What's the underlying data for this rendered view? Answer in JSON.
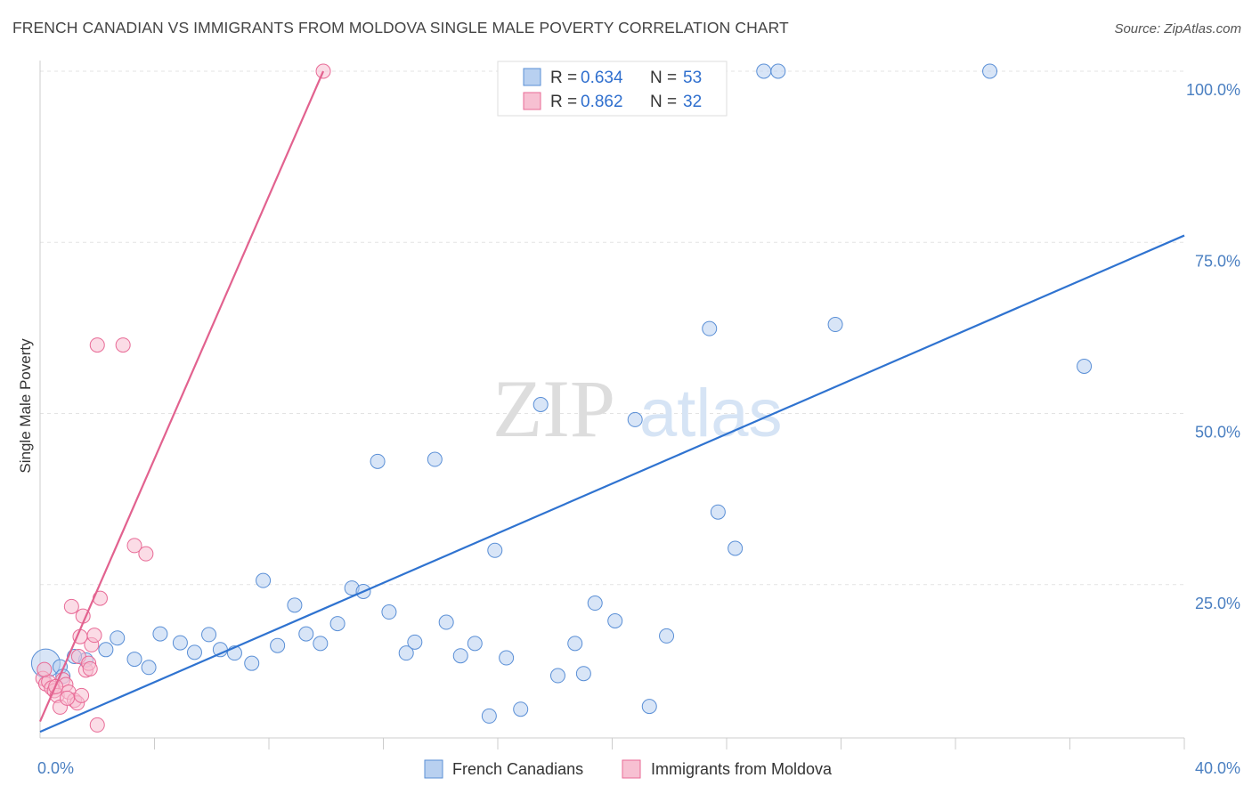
{
  "header": {
    "title": "FRENCH CANADIAN VS IMMIGRANTS FROM MOLDOVA SINGLE MALE POVERTY CORRELATION CHART",
    "source": "Source: ZipAtlas.com"
  },
  "watermark": {
    "zip": "ZIP",
    "atlas": "atlas"
  },
  "chart_data": {
    "type": "scatter",
    "title": "FRENCH CANADIAN VS IMMIGRANTS FROM MOLDOVA SINGLE MALE POVERTY CORRELATION CHART",
    "xlabel": "",
    "ylabel": "Single Male Poverty",
    "xlim": [
      0,
      40
    ],
    "ylim": [
      0,
      100
    ],
    "x_tick_labels": [
      "0.0%",
      "40.0%"
    ],
    "y_ticks": [
      25,
      50,
      75,
      100
    ],
    "y_tick_labels": [
      "25.0%",
      "50.0%",
      "75.0%",
      "100.0%"
    ],
    "grid": true,
    "legend_placement": "top-center",
    "series": [
      {
        "name": "French Canadians",
        "color": "#5a8fd6",
        "fill": "#b8d0f0",
        "R": "0.634",
        "N": "53",
        "trend": {
          "x": [
            0,
            40
          ],
          "y": [
            3.5,
            76
          ]
        },
        "points": [
          [
            0.2,
            13.5
          ],
          [
            0.7,
            13
          ],
          [
            1.6,
            14
          ],
          [
            1.2,
            14.5
          ],
          [
            2.3,
            15.5
          ],
          [
            2.7,
            17.2
          ],
          [
            3.3,
            14.1
          ],
          [
            3.8,
            12.9
          ],
          [
            4.2,
            17.8
          ],
          [
            4.9,
            16.5
          ],
          [
            5.4,
            15.1
          ],
          [
            5.9,
            17.7
          ],
          [
            6.3,
            15.5
          ],
          [
            6.8,
            15
          ],
          [
            7.4,
            13.5
          ],
          [
            7.8,
            25.6
          ],
          [
            8.3,
            16.1
          ],
          [
            8.9,
            22
          ],
          [
            9.3,
            17.8
          ],
          [
            9.8,
            16.4
          ],
          [
            10.4,
            19.3
          ],
          [
            10.9,
            24.5
          ],
          [
            11.3,
            24
          ],
          [
            11.8,
            43
          ],
          [
            12.2,
            21
          ],
          [
            12.8,
            15
          ],
          [
            13.1,
            16.6
          ],
          [
            13.8,
            43.3
          ],
          [
            14.2,
            19.5
          ],
          [
            14.7,
            14.6
          ],
          [
            15.2,
            16.4
          ],
          [
            15.7,
            5.8
          ],
          [
            15.9,
            30
          ],
          [
            16.3,
            14.3
          ],
          [
            16.8,
            6.8
          ],
          [
            17.5,
            51.3
          ],
          [
            18.1,
            11.7
          ],
          [
            18.7,
            16.4
          ],
          [
            19,
            12
          ],
          [
            19.4,
            22.3
          ],
          [
            20.1,
            19.7
          ],
          [
            20.8,
            49.1
          ],
          [
            21.3,
            7.2
          ],
          [
            21.9,
            17.5
          ],
          [
            23.4,
            62.4
          ],
          [
            23.7,
            35.6
          ],
          [
            24.3,
            30.3
          ],
          [
            25.3,
            100
          ],
          [
            25.8,
            100
          ],
          [
            27.8,
            63
          ],
          [
            33.2,
            100
          ],
          [
            36.5,
            56.9
          ],
          [
            0.8,
            11.6
          ]
        ]
      },
      {
        "name": "Immigrants from Moldova",
        "color": "#e86a96",
        "fill": "#f7c0d2",
        "R": "0.862",
        "N": "32",
        "trend": {
          "x": [
            0,
            9.9
          ],
          "y": [
            5,
            100
          ]
        },
        "points": [
          [
            0.1,
            11.3
          ],
          [
            0.2,
            10.5
          ],
          [
            0.3,
            10.8
          ],
          [
            0.4,
            9.9
          ],
          [
            0.5,
            9.5
          ],
          [
            0.6,
            8.8
          ],
          [
            0.7,
            7.1
          ],
          [
            0.8,
            11.1
          ],
          [
            0.9,
            10.4
          ],
          [
            1,
            9.3
          ],
          [
            1.1,
            21.8
          ],
          [
            1.2,
            8.1
          ],
          [
            1.3,
            7.7
          ],
          [
            1.35,
            14.5
          ],
          [
            1.4,
            17.4
          ],
          [
            1.45,
            8.8
          ],
          [
            1.5,
            20.4
          ],
          [
            1.6,
            12.5
          ],
          [
            1.7,
            13.5
          ],
          [
            1.75,
            12.7
          ],
          [
            1.8,
            16.2
          ],
          [
            1.9,
            17.6
          ],
          [
            2,
            4.5
          ],
          [
            2.1,
            23
          ],
          [
            2.0,
            60
          ],
          [
            2.9,
            60
          ],
          [
            3.3,
            30.7
          ],
          [
            3.7,
            29.5
          ],
          [
            9.9,
            100
          ],
          [
            0.15,
            12.6
          ],
          [
            0.55,
            10.1
          ],
          [
            0.95,
            8.4
          ]
        ]
      }
    ]
  }
}
